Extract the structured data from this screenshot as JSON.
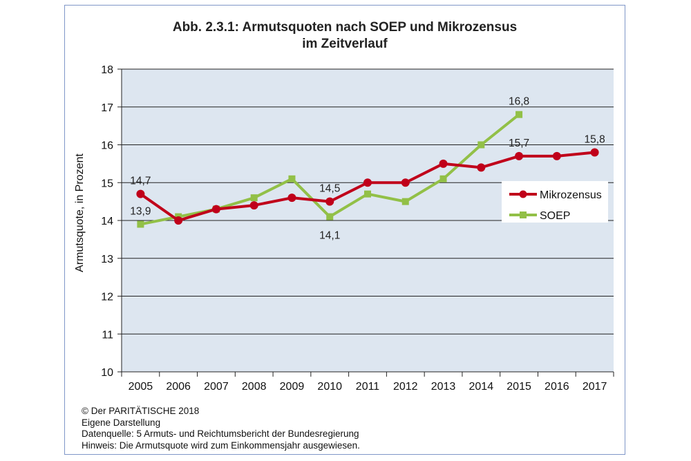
{
  "chart_data": {
    "type": "line",
    "title_lines": [
      "Abb. 2.3.1: Armutsquoten nach SOEP und Mikrozensus",
      "im Zeitverlauf"
    ],
    "ylabel": "Armutsquote, in Prozent",
    "xlabel": "",
    "ylim": [
      10,
      18
    ],
    "yticks": [
      "10",
      "11",
      "12",
      "13",
      "14",
      "15",
      "16",
      "17",
      "18"
    ],
    "categories": [
      "2005",
      "2006",
      "2007",
      "2008",
      "2009",
      "2010",
      "2011",
      "2012",
      "2013",
      "2014",
      "2015",
      "2016",
      "2017"
    ],
    "grid": true,
    "legend_position": "right",
    "series": [
      {
        "name": "Mikrozensus",
        "color": "#c0001a",
        "marker": "circle",
        "values": [
          14.7,
          14.0,
          14.3,
          14.4,
          14.6,
          14.5,
          15.0,
          15.0,
          15.5,
          15.4,
          15.7,
          15.7,
          15.8
        ]
      },
      {
        "name": "SOEP",
        "color": "#92c047",
        "marker": "square",
        "values": [
          13.9,
          14.1,
          14.3,
          14.6,
          15.1,
          14.1,
          14.7,
          14.5,
          15.1,
          16.0,
          16.8,
          null,
          null
        ]
      }
    ],
    "annotations": [
      {
        "text": "14,7",
        "category": "2005",
        "series": "Mikrozensus",
        "position": "above"
      },
      {
        "text": "13,9",
        "category": "2005",
        "series": "SOEP",
        "position": "above"
      },
      {
        "text": "14,5",
        "category": "2010",
        "series": "Mikrozensus",
        "position": "above"
      },
      {
        "text": "14,1",
        "category": "2010",
        "series": "SOEP",
        "position": "below"
      },
      {
        "text": "16,8",
        "category": "2015",
        "series": "SOEP",
        "position": "above"
      },
      {
        "text": "15,7",
        "category": "2015",
        "series": "Mikrozensus",
        "position": "above"
      },
      {
        "text": "15,8",
        "category": "2017",
        "series": "Mikrozensus",
        "position": "above"
      }
    ]
  },
  "colors": {
    "plot_background": "#dde6f0",
    "gridline": "#222222",
    "frame_border": "#7f96c8"
  },
  "footer": {
    "lines": [
      "© Der PARITÄTISCHE 2018",
      "Eigene Darstellung",
      "Datenquelle: 5 Armuts- und Reichtumsbericht der Bundesregierung",
      "Hinweis: Die Armutsquote wird zum Einkommensjahr ausgewiesen."
    ]
  }
}
